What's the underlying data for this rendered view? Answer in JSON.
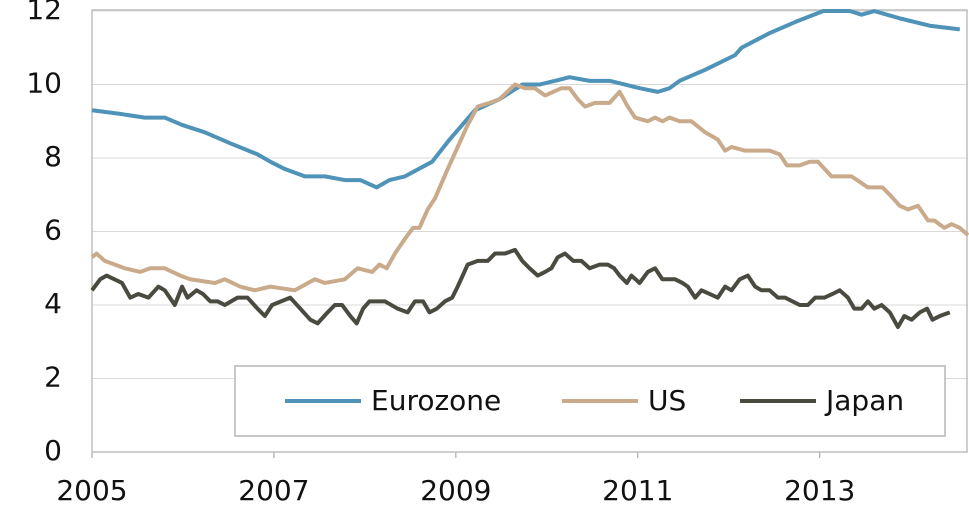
{
  "chart_data": {
    "type": "line",
    "xlim": [
      2005,
      2014.63
    ],
    "xticks": [
      2005,
      2007,
      2009,
      2011,
      2013
    ],
    "ylim": [
      0,
      12.3
    ],
    "yticks": [
      0,
      2,
      4,
      6,
      8,
      10,
      12
    ],
    "grid": true,
    "legend": "lower right",
    "series": [
      {
        "name": "Eurozone",
        "color": "#4f93b8",
        "x": [
          2005.0,
          2005.31,
          2005.58,
          2005.8,
          2005.99,
          2006.24,
          2006.52,
          2006.82,
          2006.96,
          2007.12,
          2007.34,
          2007.56,
          2007.78,
          2007.95,
          2008.13,
          2008.27,
          2008.44,
          2008.74,
          2008.93,
          2009.21,
          2009.48,
          2009.73,
          2009.92,
          2010.09,
          2010.25,
          2010.47,
          2010.69,
          2010.86,
          2011.02,
          2011.22,
          2011.35,
          2011.46,
          2011.74,
          2012.07,
          2012.14,
          2012.45,
          2012.73,
          2013.04,
          2013.33,
          2013.46,
          2013.6,
          2013.88,
          2014.21,
          2014.54
        ],
        "values": [
          9.3,
          9.2,
          9.1,
          9.1,
          8.9,
          8.7,
          8.4,
          8.1,
          7.9,
          7.7,
          7.5,
          7.5,
          7.4,
          7.4,
          7.2,
          7.4,
          7.5,
          7.9,
          8.5,
          9.3,
          9.6,
          10.0,
          10.0,
          10.1,
          10.2,
          10.1,
          10.1,
          10.0,
          9.9,
          9.8,
          9.9,
          10.1,
          10.4,
          10.8,
          11.0,
          11.4,
          11.7,
          12.0,
          12.0,
          11.9,
          12.0,
          11.8,
          11.6,
          11.5
        ]
      },
      {
        "name": "US",
        "color": "#c9aa8b",
        "x": [
          2005.0,
          2005.05,
          2005.14,
          2005.36,
          2005.53,
          2005.64,
          2005.8,
          2005.97,
          2006.08,
          2006.35,
          2006.46,
          2006.63,
          2006.79,
          2006.96,
          2007.23,
          2007.45,
          2007.56,
          2007.78,
          2007.92,
          2008.08,
          2008.16,
          2008.24,
          2008.33,
          2008.44,
          2008.53,
          2008.6,
          2008.69,
          2008.77,
          2008.91,
          2009.02,
          2009.13,
          2009.24,
          2009.37,
          2009.48,
          2009.65,
          2009.76,
          2009.87,
          2009.98,
          2010.16,
          2010.25,
          2010.34,
          2010.42,
          2010.53,
          2010.69,
          2010.8,
          2010.89,
          2010.97,
          2011.11,
          2011.19,
          2011.27,
          2011.35,
          2011.46,
          2011.59,
          2011.74,
          2011.88,
          2011.96,
          2012.03,
          2012.18,
          2012.45,
          2012.56,
          2012.64,
          2012.78,
          2012.89,
          2012.98,
          2013.13,
          2013.35,
          2013.53,
          2013.69,
          2013.77,
          2013.88,
          2013.97,
          2014.08,
          2014.19,
          2014.26,
          2014.37,
          2014.45,
          2014.54,
          2014.63
        ],
        "values": [
          5.3,
          5.4,
          5.2,
          5.0,
          4.9,
          5.0,
          5.0,
          4.8,
          4.7,
          4.6,
          4.7,
          4.5,
          4.4,
          4.5,
          4.4,
          4.7,
          4.6,
          4.7,
          5.0,
          4.9,
          5.1,
          5.0,
          5.4,
          5.8,
          6.1,
          6.1,
          6.6,
          6.9,
          7.7,
          8.3,
          8.9,
          9.4,
          9.5,
          9.6,
          10.0,
          9.9,
          9.9,
          9.7,
          9.9,
          9.9,
          9.6,
          9.4,
          9.5,
          9.5,
          9.8,
          9.4,
          9.1,
          9.0,
          9.1,
          9.0,
          9.1,
          9.0,
          9.0,
          8.7,
          8.5,
          8.2,
          8.3,
          8.2,
          8.2,
          8.1,
          7.8,
          7.8,
          7.9,
          7.9,
          7.5,
          7.5,
          7.2,
          7.2,
          7.0,
          6.7,
          6.6,
          6.7,
          6.3,
          6.3,
          6.1,
          6.2,
          6.1,
          5.9
        ]
      },
      {
        "name": "Japan",
        "color": "#4a4a40",
        "x": [
          2005.0,
          2005.09,
          2005.16,
          2005.33,
          2005.42,
          2005.51,
          2005.62,
          2005.73,
          2005.8,
          2005.91,
          2005.99,
          2006.05,
          2006.15,
          2006.22,
          2006.3,
          2006.38,
          2006.46,
          2006.6,
          2006.71,
          2006.82,
          2006.9,
          2006.98,
          2007.18,
          2007.29,
          2007.4,
          2007.48,
          2007.59,
          2007.67,
          2007.75,
          2007.84,
          2007.91,
          2007.98,
          2008.05,
          2008.22,
          2008.36,
          2008.47,
          2008.55,
          2008.64,
          2008.71,
          2008.79,
          2008.88,
          2008.96,
          2009.02,
          2009.13,
          2009.24,
          2009.35,
          2009.43,
          2009.54,
          2009.65,
          2009.73,
          2009.81,
          2009.9,
          2009.98,
          2010.05,
          2010.12,
          2010.2,
          2010.29,
          2010.38,
          2010.47,
          2010.58,
          2010.67,
          2010.74,
          2010.8,
          2010.88,
          2010.93,
          2011.02,
          2011.11,
          2011.19,
          2011.27,
          2011.41,
          2011.49,
          2011.55,
          2011.63,
          2011.7,
          2011.79,
          2011.88,
          2011.96,
          2012.03,
          2012.12,
          2012.21,
          2012.29,
          2012.36,
          2012.45,
          2012.54,
          2012.62,
          2012.78,
          2012.87,
          2012.95,
          2013.05,
          2013.14,
          2013.22,
          2013.31,
          2013.38,
          2013.46,
          2013.53,
          2013.6,
          2013.68,
          2013.77,
          2013.86,
          2013.93,
          2014.01,
          2014.1,
          2014.18,
          2014.24,
          2014.32,
          2014.43
        ],
        "values": [
          4.4,
          4.7,
          4.8,
          4.6,
          4.2,
          4.3,
          4.2,
          4.5,
          4.4,
          4.0,
          4.5,
          4.2,
          4.4,
          4.3,
          4.1,
          4.1,
          4.0,
          4.2,
          4.2,
          3.9,
          3.7,
          4.0,
          4.2,
          3.9,
          3.6,
          3.5,
          3.8,
          4.0,
          4.0,
          3.7,
          3.5,
          3.9,
          4.1,
          4.1,
          3.9,
          3.8,
          4.1,
          4.1,
          3.8,
          3.9,
          4.1,
          4.2,
          4.5,
          5.1,
          5.2,
          5.2,
          5.4,
          5.4,
          5.5,
          5.2,
          5.0,
          4.8,
          4.9,
          5.0,
          5.3,
          5.4,
          5.2,
          5.2,
          5.0,
          5.1,
          5.1,
          5.0,
          4.8,
          4.6,
          4.8,
          4.6,
          4.9,
          5.0,
          4.7,
          4.7,
          4.6,
          4.5,
          4.2,
          4.4,
          4.3,
          4.2,
          4.5,
          4.4,
          4.7,
          4.8,
          4.5,
          4.4,
          4.4,
          4.2,
          4.2,
          4.0,
          4.0,
          4.2,
          4.2,
          4.3,
          4.4,
          4.2,
          3.9,
          3.9,
          4.1,
          3.9,
          4.0,
          3.8,
          3.4,
          3.7,
          3.6,
          3.8,
          3.9,
          3.6,
          3.7,
          3.8
        ]
      }
    ]
  }
}
